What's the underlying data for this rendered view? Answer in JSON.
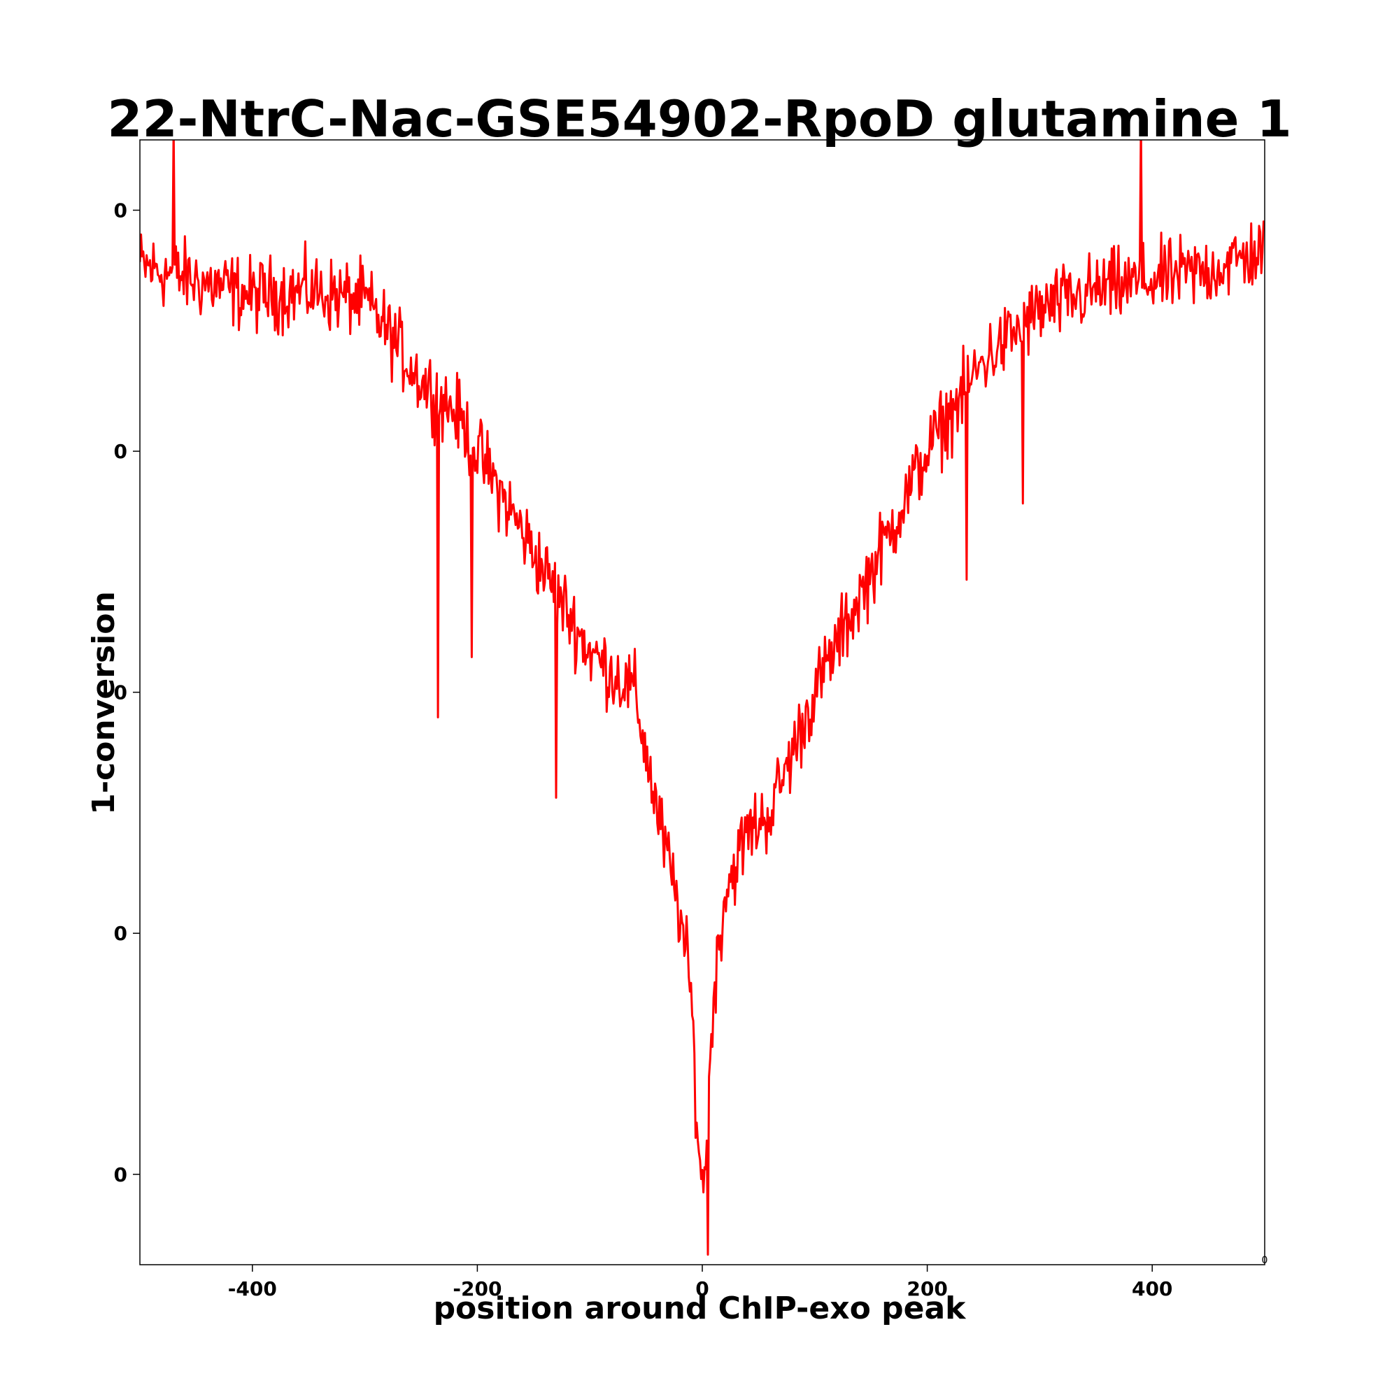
{
  "chart_data": {
    "type": "line",
    "title": "22-NtrC-Nac-GSE54902-RpoD glutamine 1",
    "xlabel": "position around ChIP-exo peak",
    "ylabel": "1-conversion",
    "xlim": [
      -500,
      500
    ],
    "ylim": [
      -0.105,
      0.007
    ],
    "grid": false,
    "x_ticks": [
      {
        "value": -400,
        "label": "-400"
      },
      {
        "value": -200,
        "label": "-200"
      },
      {
        "value": 0,
        "label": "0"
      },
      {
        "value": 200,
        "label": "200"
      },
      {
        "value": 400,
        "label": "400"
      }
    ],
    "y_ticks": [
      {
        "value": 0.0,
        "label": "0"
      },
      {
        "value": -0.024,
        "label": "0"
      },
      {
        "value": -0.048,
        "label": "0"
      },
      {
        "value": -0.072,
        "label": "0"
      },
      {
        "value": -0.096,
        "label": "0"
      }
    ],
    "offset_text": "0",
    "series": [
      {
        "color": "#ff0000",
        "profile": {
          "x": [
            -500,
            -450,
            -400,
            -350,
            -300,
            -280,
            -250,
            -220,
            -200,
            -150,
            -100,
            -60,
            -40,
            -20,
            -10,
            -5,
            0,
            5,
            10,
            20,
            40,
            60,
            100,
            150,
            200,
            250,
            300,
            350,
            400,
            450,
            500
          ],
          "y": [
            -0.0055,
            -0.007,
            -0.0085,
            -0.008,
            -0.009,
            -0.012,
            -0.017,
            -0.02,
            -0.024,
            -0.034,
            -0.044,
            -0.048,
            -0.06,
            -0.07,
            -0.078,
            -0.09,
            -0.098,
            -0.09,
            -0.078,
            -0.068,
            -0.062,
            -0.06,
            -0.048,
            -0.036,
            -0.024,
            -0.015,
            -0.01,
            -0.008,
            -0.007,
            -0.006,
            -0.004
          ]
        },
        "noise_amplitude": 0.0055,
        "outliers": [
          {
            "x": -235,
            "y": -0.0505
          },
          {
            "x": -205,
            "y": -0.0445
          },
          {
            "x": -130,
            "y": -0.0585
          },
          {
            "x": 390,
            "y": 0.0089
          },
          {
            "x": -470,
            "y": 0.0084
          },
          {
            "x": 5,
            "y": -0.104
          },
          {
            "x": 235,
            "y": -0.0368
          },
          {
            "x": 285,
            "y": -0.0292
          }
        ]
      }
    ]
  }
}
